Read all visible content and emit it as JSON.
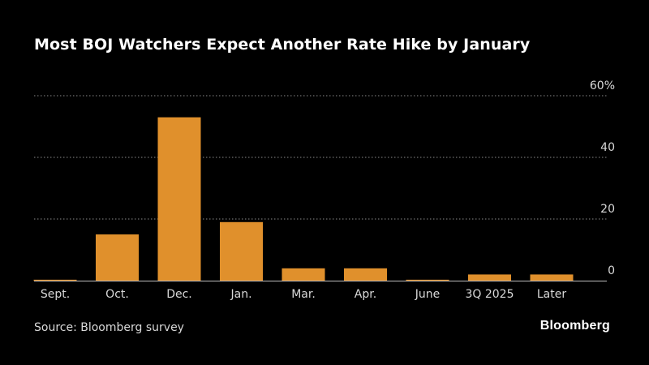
{
  "title": "Most BOJ Watchers Expect Another Rate Hike by January",
  "source": "Source: Bloomberg survey",
  "brand": "Bloomberg",
  "colors": {
    "bar": "#e0902c",
    "background": "#000000",
    "grid": "#8a8a8a",
    "text": "#d9d9d9"
  },
  "chart_data": {
    "type": "bar",
    "categories": [
      "Sept.",
      "Oct.",
      "Dec.",
      "Jan.",
      "Mar.",
      "Apr.",
      "June",
      "3Q 2025",
      "Later"
    ],
    "values": [
      0.3,
      15,
      53,
      19,
      4,
      4,
      0.3,
      2,
      2
    ],
    "ylim": [
      0,
      60
    ],
    "yticks": [
      0,
      20,
      40,
      60
    ],
    "ytick_labels": [
      "0",
      "20",
      "40",
      "60%"
    ],
    "y_axis_side": "right",
    "grid": true
  }
}
